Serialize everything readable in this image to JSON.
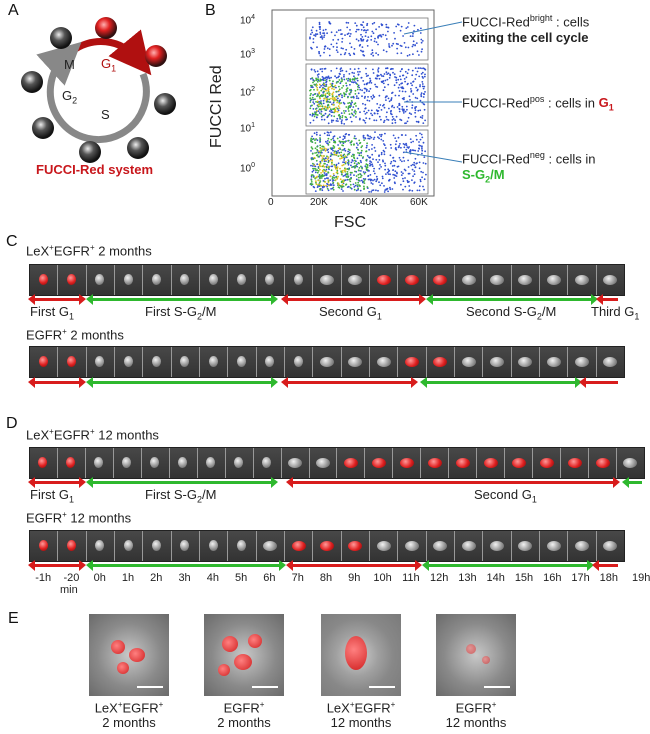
{
  "panels": {
    "A": "A",
    "B": "B",
    "C": "C",
    "D": "D",
    "E": "E"
  },
  "panelA": {
    "phases": {
      "m": "M",
      "g1": "G",
      "g1_sub": "1",
      "g2": "G",
      "g2_sub": "2",
      "s": "S"
    },
    "caption": "FUCCI-Red system"
  },
  "panelB": {
    "ylabel": "FUCCI Red",
    "xlabel": "FSC",
    "yticks": [
      {
        "base": "10",
        "exp": "4"
      },
      {
        "base": "10",
        "exp": "3"
      },
      {
        "base": "10",
        "exp": "2"
      },
      {
        "base": "10",
        "exp": "1"
      },
      {
        "base": "10",
        "exp": "0"
      }
    ],
    "xticks": [
      "0",
      "20K",
      "40K",
      "60K"
    ],
    "gate_bright": {
      "prefix": "FUCCI-Red",
      "sup": "bright",
      "suffix": " : cells",
      "line2": "exiting the cell cycle"
    },
    "gate_pos": {
      "prefix": "FUCCI-Red",
      "sup": "pos",
      "suffix": " : cells in ",
      "phase": "G",
      "phase_sub": "1"
    },
    "gate_neg": {
      "prefix": "FUCCI-Red",
      "sup": "neg",
      "suffix": " : cells in",
      "line2": "S-G",
      "line2_sub": "2",
      "line2_end": "/M"
    }
  },
  "panelC": {
    "row1_title": {
      "a": "LeX",
      "b": "EGFR",
      "c": " 2 months"
    },
    "row2_title": {
      "a": "EGFR",
      "c": " 2 months"
    },
    "phase_labels": {
      "first_g1": "First G",
      "first_sg2m": "First S-G",
      "first_sg2m_end": "/M",
      "second_g1": "Second G",
      "second_sg2m": "Second S-G",
      "second_sg2m_end": "/M",
      "third_g1": "Third G"
    }
  },
  "panelD": {
    "row1_title": {
      "a": "LeX",
      "b": "EGFR",
      "c": " 12 months"
    },
    "row2_title": {
      "a": "EGFR",
      "c": " 12 months"
    },
    "phase_labels": {
      "first_g1": "First G",
      "first_sg2m": "First S-G",
      "first_sg2m_end": "/M",
      "second_g1": "Second G"
    },
    "hours": [
      "-1h",
      "-20",
      "0h",
      "1h",
      "2h",
      "3h",
      "4h",
      "5h",
      "6h",
      "7h",
      "8h",
      "9h",
      "10h",
      "11h",
      "12h",
      "13h",
      "14h",
      "15h",
      "16h",
      "17h",
      "18h",
      "19h"
    ],
    "min_label": "min"
  },
  "panelE": {
    "captions": [
      {
        "a": "LeX",
        "b": "EGFR",
        "line2": "2 months"
      },
      {
        "a": "EGFR",
        "line2": "2 months"
      },
      {
        "a": "LeX",
        "b": "EGFR",
        "line2": "12 months"
      },
      {
        "a": "EGFR",
        "line2": "12 months"
      }
    ]
  },
  "colors": {
    "red": "#c8171c",
    "green": "#2eb82e",
    "dark_red": "#b01010"
  }
}
